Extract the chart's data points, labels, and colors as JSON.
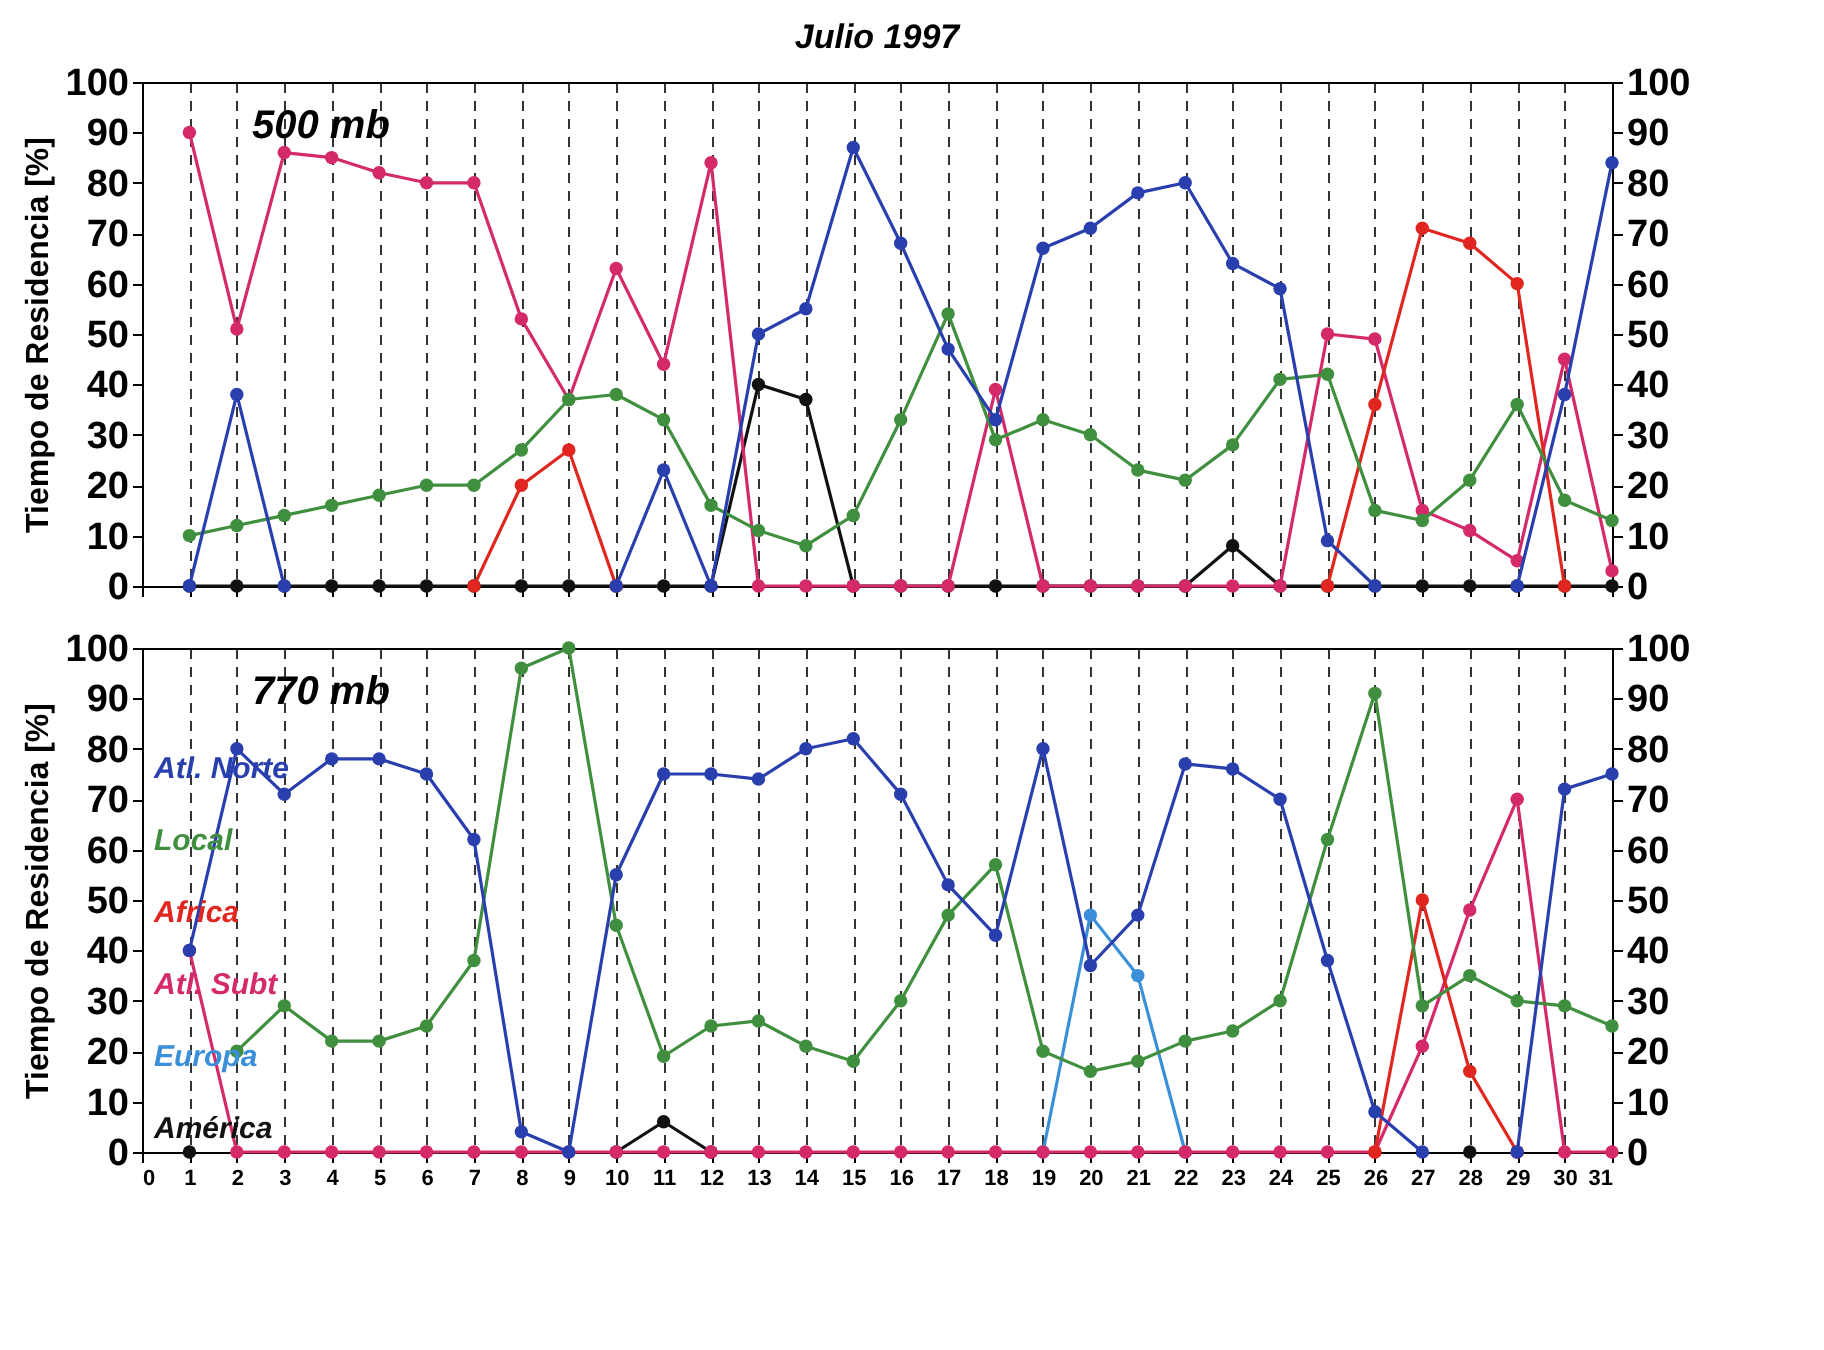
{
  "chart_data": [
    {
      "type": "line",
      "title": "Julio 1997",
      "ylabel": "Tiempo de Residencia [%]",
      "annotations": [
        "500 mb"
      ],
      "x": [
        1,
        2,
        3,
        4,
        5,
        6,
        7,
        8,
        9,
        10,
        11,
        12,
        13,
        14,
        15,
        16,
        17,
        18,
        19,
        20,
        21,
        22,
        23,
        24,
        25,
        26,
        27,
        28,
        29,
        30,
        31
      ],
      "xlim": [
        0,
        31
      ],
      "xticks": [
        0,
        1,
        2,
        3,
        4,
        5,
        6,
        7,
        8,
        9,
        10,
        11,
        12,
        13,
        14,
        15,
        16,
        17,
        18,
        19,
        20,
        21,
        22,
        23,
        24,
        25,
        26,
        27,
        28,
        29,
        30,
        31
      ],
      "ylim": [
        0,
        100
      ],
      "yticks": [
        0,
        10,
        20,
        30,
        40,
        50,
        60,
        70,
        80,
        90,
        100
      ],
      "y2lim": [
        0,
        100
      ],
      "y2ticks": [
        0,
        10,
        20,
        30,
        40,
        50,
        60,
        70,
        80,
        90,
        100
      ],
      "grid": "x",
      "marker": "circle",
      "tick_labels": "y",
      "series": [
        {
          "color": "#2a3fae",
          "values": [
            0,
            38,
            0,
            null,
            null,
            null,
            null,
            null,
            null,
            0,
            23,
            0,
            50,
            55,
            87,
            68,
            47,
            33,
            67,
            71,
            78,
            80,
            64,
            59,
            9,
            0,
            null,
            null,
            0,
            38,
            84
          ]
        },
        {
          "color": "#3f8f3f",
          "values": [
            10,
            12,
            14,
            16,
            18,
            20,
            20,
            27,
            37,
            38,
            33,
            16,
            11,
            8,
            14,
            33,
            54,
            29,
            33,
            30,
            23,
            21,
            28,
            41,
            42,
            15,
            13,
            21,
            36,
            17,
            13
          ]
        },
        {
          "color": "#e0261f",
          "values": [
            null,
            null,
            null,
            null,
            null,
            null,
            0,
            20,
            27,
            0,
            null,
            null,
            null,
            null,
            null,
            null,
            null,
            null,
            null,
            null,
            null,
            null,
            null,
            null,
            0,
            36,
            71,
            68,
            60,
            0,
            null
          ]
        },
        {
          "color": "#d42a6a",
          "values": [
            90,
            51,
            86,
            85,
            82,
            80,
            80,
            53,
            37,
            63,
            44,
            84,
            0,
            0,
            0,
            0,
            0,
            39,
            0,
            0,
            0,
            0,
            0,
            0,
            50,
            49,
            15,
            11,
            5,
            45,
            3
          ]
        },
        {
          "color": "#111111",
          "values": [
            0,
            0,
            0,
            0,
            0,
            0,
            0,
            0,
            0,
            0,
            0,
            0,
            40,
            37,
            0,
            0,
            0,
            0,
            0,
            0,
            0,
            0,
            8,
            0,
            0,
            0,
            0,
            0,
            0,
            0,
            0
          ]
        }
      ]
    },
    {
      "type": "line",
      "ylabel": "Tiempo de Residencia [%]",
      "annotations": [
        "770 mb"
      ],
      "x": [
        1,
        2,
        3,
        4,
        5,
        6,
        7,
        8,
        9,
        10,
        11,
        12,
        13,
        14,
        15,
        16,
        17,
        18,
        19,
        20,
        21,
        22,
        23,
        24,
        25,
        26,
        27,
        28,
        29,
        30,
        31
      ],
      "xlim": [
        0,
        31
      ],
      "xticks": [
        0,
        1,
        2,
        3,
        4,
        5,
        6,
        7,
        8,
        9,
        10,
        11,
        12,
        13,
        14,
        15,
        16,
        17,
        18,
        19,
        20,
        21,
        22,
        23,
        24,
        25,
        26,
        27,
        28,
        29,
        30,
        31
      ],
      "ylim": [
        0,
        100
      ],
      "yticks": [
        0,
        10,
        20,
        30,
        40,
        50,
        60,
        70,
        80,
        90,
        100
      ],
      "y2lim": [
        0,
        100
      ],
      "y2ticks": [
        0,
        10,
        20,
        30,
        40,
        50,
        60,
        70,
        80,
        90,
        100
      ],
      "grid": "x",
      "marker": "circle",
      "series": [
        {
          "name": "Atl. Norte",
          "color": "#2a3fae",
          "values": [
            40,
            80,
            71,
            78,
            78,
            75,
            62,
            4,
            0,
            55,
            75,
            75,
            74,
            80,
            82,
            71,
            53,
            43,
            80,
            37,
            47,
            77,
            76,
            70,
            38,
            8,
            0,
            null,
            0,
            72,
            75
          ]
        },
        {
          "name": "Local",
          "color": "#3f8f3f",
          "values": [
            null,
            20,
            29,
            22,
            22,
            25,
            38,
            96,
            100,
            45,
            19,
            25,
            26,
            21,
            18,
            30,
            47,
            57,
            20,
            16,
            18,
            22,
            24,
            30,
            62,
            91,
            29,
            35,
            30,
            29,
            25
          ]
        },
        {
          "name": "Africa",
          "color": "#e0261f",
          "values": [
            null,
            null,
            null,
            null,
            null,
            null,
            null,
            null,
            null,
            null,
            null,
            null,
            null,
            null,
            null,
            null,
            null,
            null,
            null,
            null,
            null,
            null,
            null,
            null,
            null,
            0,
            50,
            16,
            0,
            null,
            null
          ]
        },
        {
          "name": "Atl. Subt",
          "color": "#d42a6a",
          "values": [
            40,
            0,
            0,
            0,
            0,
            0,
            0,
            0,
            0,
            0,
            0,
            0,
            0,
            0,
            0,
            0,
            0,
            0,
            0,
            0,
            0,
            0,
            0,
            0,
            0,
            0,
            21,
            48,
            70,
            0,
            0
          ]
        },
        {
          "name": "Europa",
          "color": "#3a8fd8",
          "values": [
            null,
            null,
            null,
            null,
            null,
            null,
            null,
            null,
            null,
            null,
            null,
            null,
            null,
            null,
            null,
            null,
            null,
            null,
            0,
            47,
            35,
            0,
            null,
            null,
            null,
            null,
            null,
            null,
            null,
            null,
            null
          ]
        },
        {
          "name": "América",
          "color": "#111111",
          "values": [
            0,
            null,
            null,
            null,
            null,
            null,
            null,
            null,
            null,
            0,
            6,
            0,
            null,
            null,
            null,
            null,
            null,
            null,
            null,
            null,
            null,
            null,
            null,
            null,
            null,
            null,
            null,
            0,
            null,
            null,
            null
          ]
        }
      ]
    }
  ]
}
